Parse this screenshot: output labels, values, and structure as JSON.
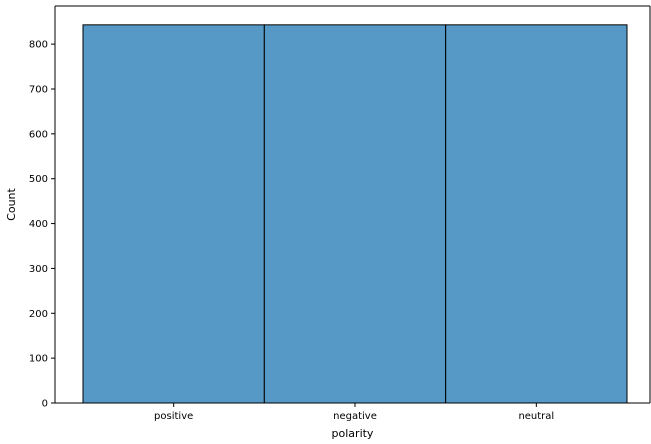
{
  "chart_data": {
    "type": "bar",
    "categories": [
      "positive",
      "negative",
      "neutral"
    ],
    "values": [
      843,
      843,
      843
    ],
    "xlabel": "polarity",
    "ylabel": "Count",
    "ylim": [
      0,
      885
    ],
    "yticks": [
      0,
      100,
      200,
      300,
      400,
      500,
      600,
      700,
      800
    ],
    "grid": false,
    "bar_color": "#5799c6",
    "edge_color": "#000000"
  }
}
